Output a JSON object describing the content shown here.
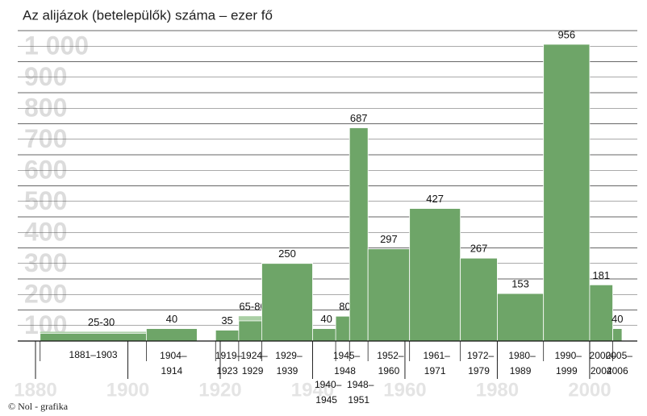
{
  "chart_data": {
    "type": "bar",
    "title": "Az alijázok (betelepülők) száma – ezer fő",
    "footer": "© Nol - grafika",
    "categories": [
      [
        "1881–1903"
      ],
      [
        "1904–",
        "1914"
      ],
      [
        "1919–",
        "1923"
      ],
      [
        "1924–",
        "1929"
      ],
      [
        "1929–",
        "1939"
      ],
      [
        "1940–",
        "1945"
      ],
      [
        "1945–",
        "1948"
      ],
      [
        "1948–",
        "1951"
      ],
      [
        "1952–",
        "1960"
      ],
      [
        "1961–",
        "1971"
      ],
      [
        "1972–",
        "1979"
      ],
      [
        "1980–",
        "1989"
      ],
      [
        "1990–",
        "1999"
      ],
      [
        "2000–",
        "2004"
      ],
      [
        "2005–",
        "2006"
      ]
    ],
    "x_start": [
      1881,
      1904,
      1919,
      1924,
      1929,
      1940,
      1945,
      1948,
      1952,
      1961,
      1972,
      1980,
      1990,
      2000,
      2005
    ],
    "x_end": [
      1903,
      1914,
      1923,
      1929,
      1939,
      1945,
      1948,
      1951,
      1960,
      1971,
      1979,
      1989,
      1999,
      2004,
      2006
    ],
    "values": [
      25,
      40,
      35,
      65,
      250,
      40,
      80,
      687,
      297,
      427,
      267,
      153,
      956,
      181,
      40
    ],
    "values_high": [
      30,
      null,
      null,
      80,
      null,
      null,
      null,
      null,
      null,
      null,
      null,
      null,
      null,
      null,
      null
    ],
    "value_labels": [
      "25-30",
      "40",
      "35",
      "65-80",
      "250",
      "40",
      "80",
      "687",
      "297",
      "427",
      "267",
      "153",
      "956",
      "181",
      "40"
    ],
    "color": "#6ea568",
    "range_color": "#aacfa5",
    "ylim": [
      0,
      1000
    ],
    "yticks": [
      {
        "value": 100,
        "label": "100"
      },
      {
        "value": 200,
        "label": "200"
      },
      {
        "value": 300,
        "label": "300"
      },
      {
        "value": 400,
        "label": "400"
      },
      {
        "value": 500,
        "label": "500"
      },
      {
        "value": 600,
        "label": "600"
      },
      {
        "value": 700,
        "label": "700"
      },
      {
        "value": 800,
        "label": "800"
      },
      {
        "value": 900,
        "label": "900"
      },
      {
        "value": 1000,
        "label": "1 000"
      }
    ],
    "xlim": [
      1880,
      2007
    ],
    "xticks": [
      1880,
      1900,
      1920,
      1940,
      1960,
      1980,
      2000
    ],
    "grid": true
  }
}
